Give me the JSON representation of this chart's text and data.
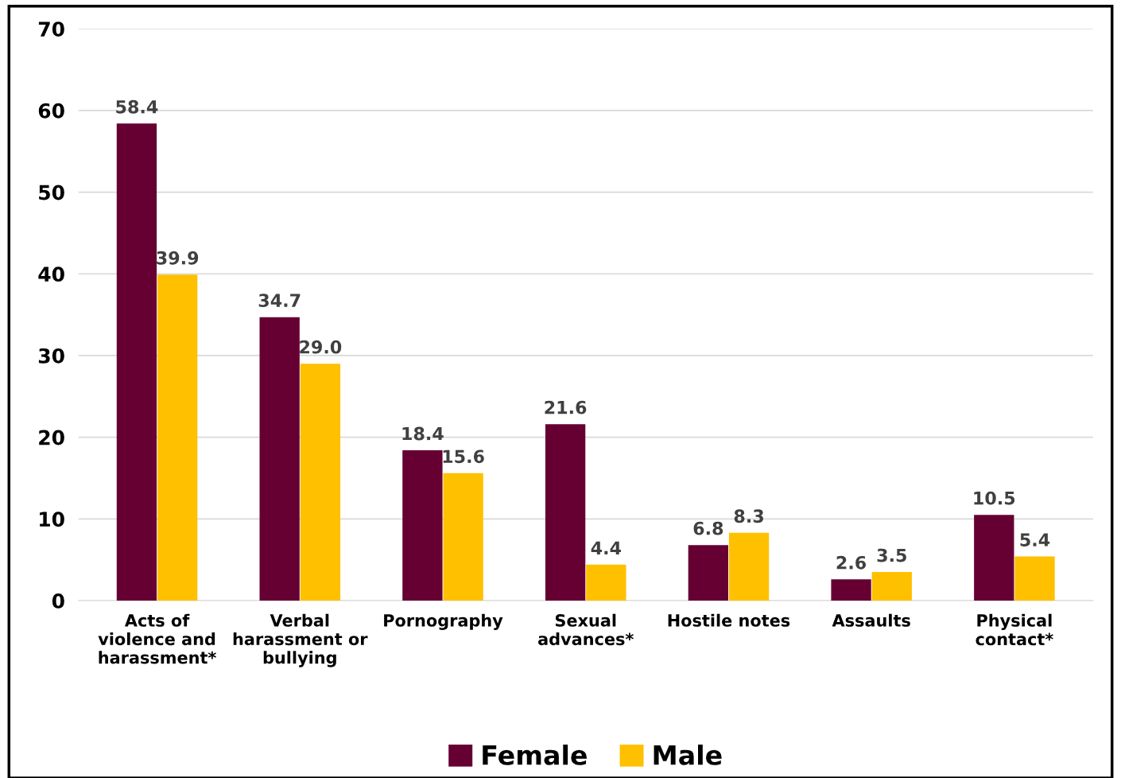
{
  "chart_data": {
    "type": "bar",
    "categories": [
      "Acts of\nviolence and\nharassment*",
      "Verbal\nharassment or\nbullying",
      "Pornography",
      "Sexual\nadvances*",
      "Hostile notes",
      "Assaults",
      "Physical\ncontact*"
    ],
    "series": [
      {
        "name": "Female",
        "color": "#660033",
        "values": [
          58.4,
          34.7,
          18.4,
          21.6,
          6.8,
          2.6,
          10.5
        ],
        "value_labels": [
          "58.4",
          "34.7",
          "18.4",
          "21.6",
          "6.8",
          "2.6",
          "10.5"
        ]
      },
      {
        "name": "Male",
        "color": "#ffc000",
        "values": [
          39.9,
          29.0,
          15.6,
          4.4,
          8.3,
          3.5,
          5.4
        ],
        "value_labels": [
          "39.9",
          "29.0",
          "15.6",
          "4.4",
          "8.3",
          "3.5",
          "5.4"
        ]
      }
    ],
    "ylim": [
      0,
      70
    ],
    "yticks": [
      0,
      10,
      20,
      30,
      40,
      50,
      60,
      70
    ],
    "grid": "y",
    "legend": "bottom"
  }
}
